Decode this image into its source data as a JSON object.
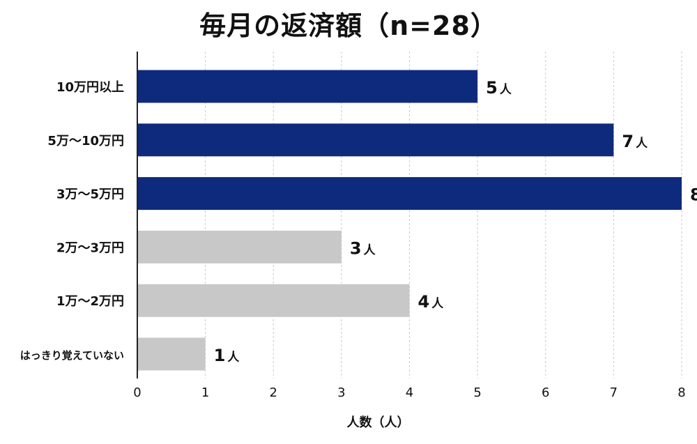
{
  "chart_data": {
    "type": "bar",
    "orientation": "horizontal",
    "title": "毎月の返済額（n=28）",
    "categories": [
      "10万円以上",
      "5万〜10万円",
      "3万〜5万円",
      "2万〜3万円",
      "1万〜2万円",
      "はっきり覚えていない"
    ],
    "values": [
      5,
      7,
      8,
      3,
      4,
      1
    ],
    "value_unit": "人",
    "xlabel": "人数（人）",
    "ylabel": "",
    "xlim": [
      0,
      8
    ],
    "x_ticks": [
      "0",
      "1",
      "2",
      "3",
      "4",
      "5",
      "6",
      "7",
      "8"
    ],
    "grid": "vertical dashed",
    "colors": {
      "highlight": "#0e2a7c",
      "normal": "#c8c8c8",
      "highlighted_categories": [
        "10万円以上",
        "5万〜10万円",
        "3万〜5万円"
      ]
    }
  }
}
